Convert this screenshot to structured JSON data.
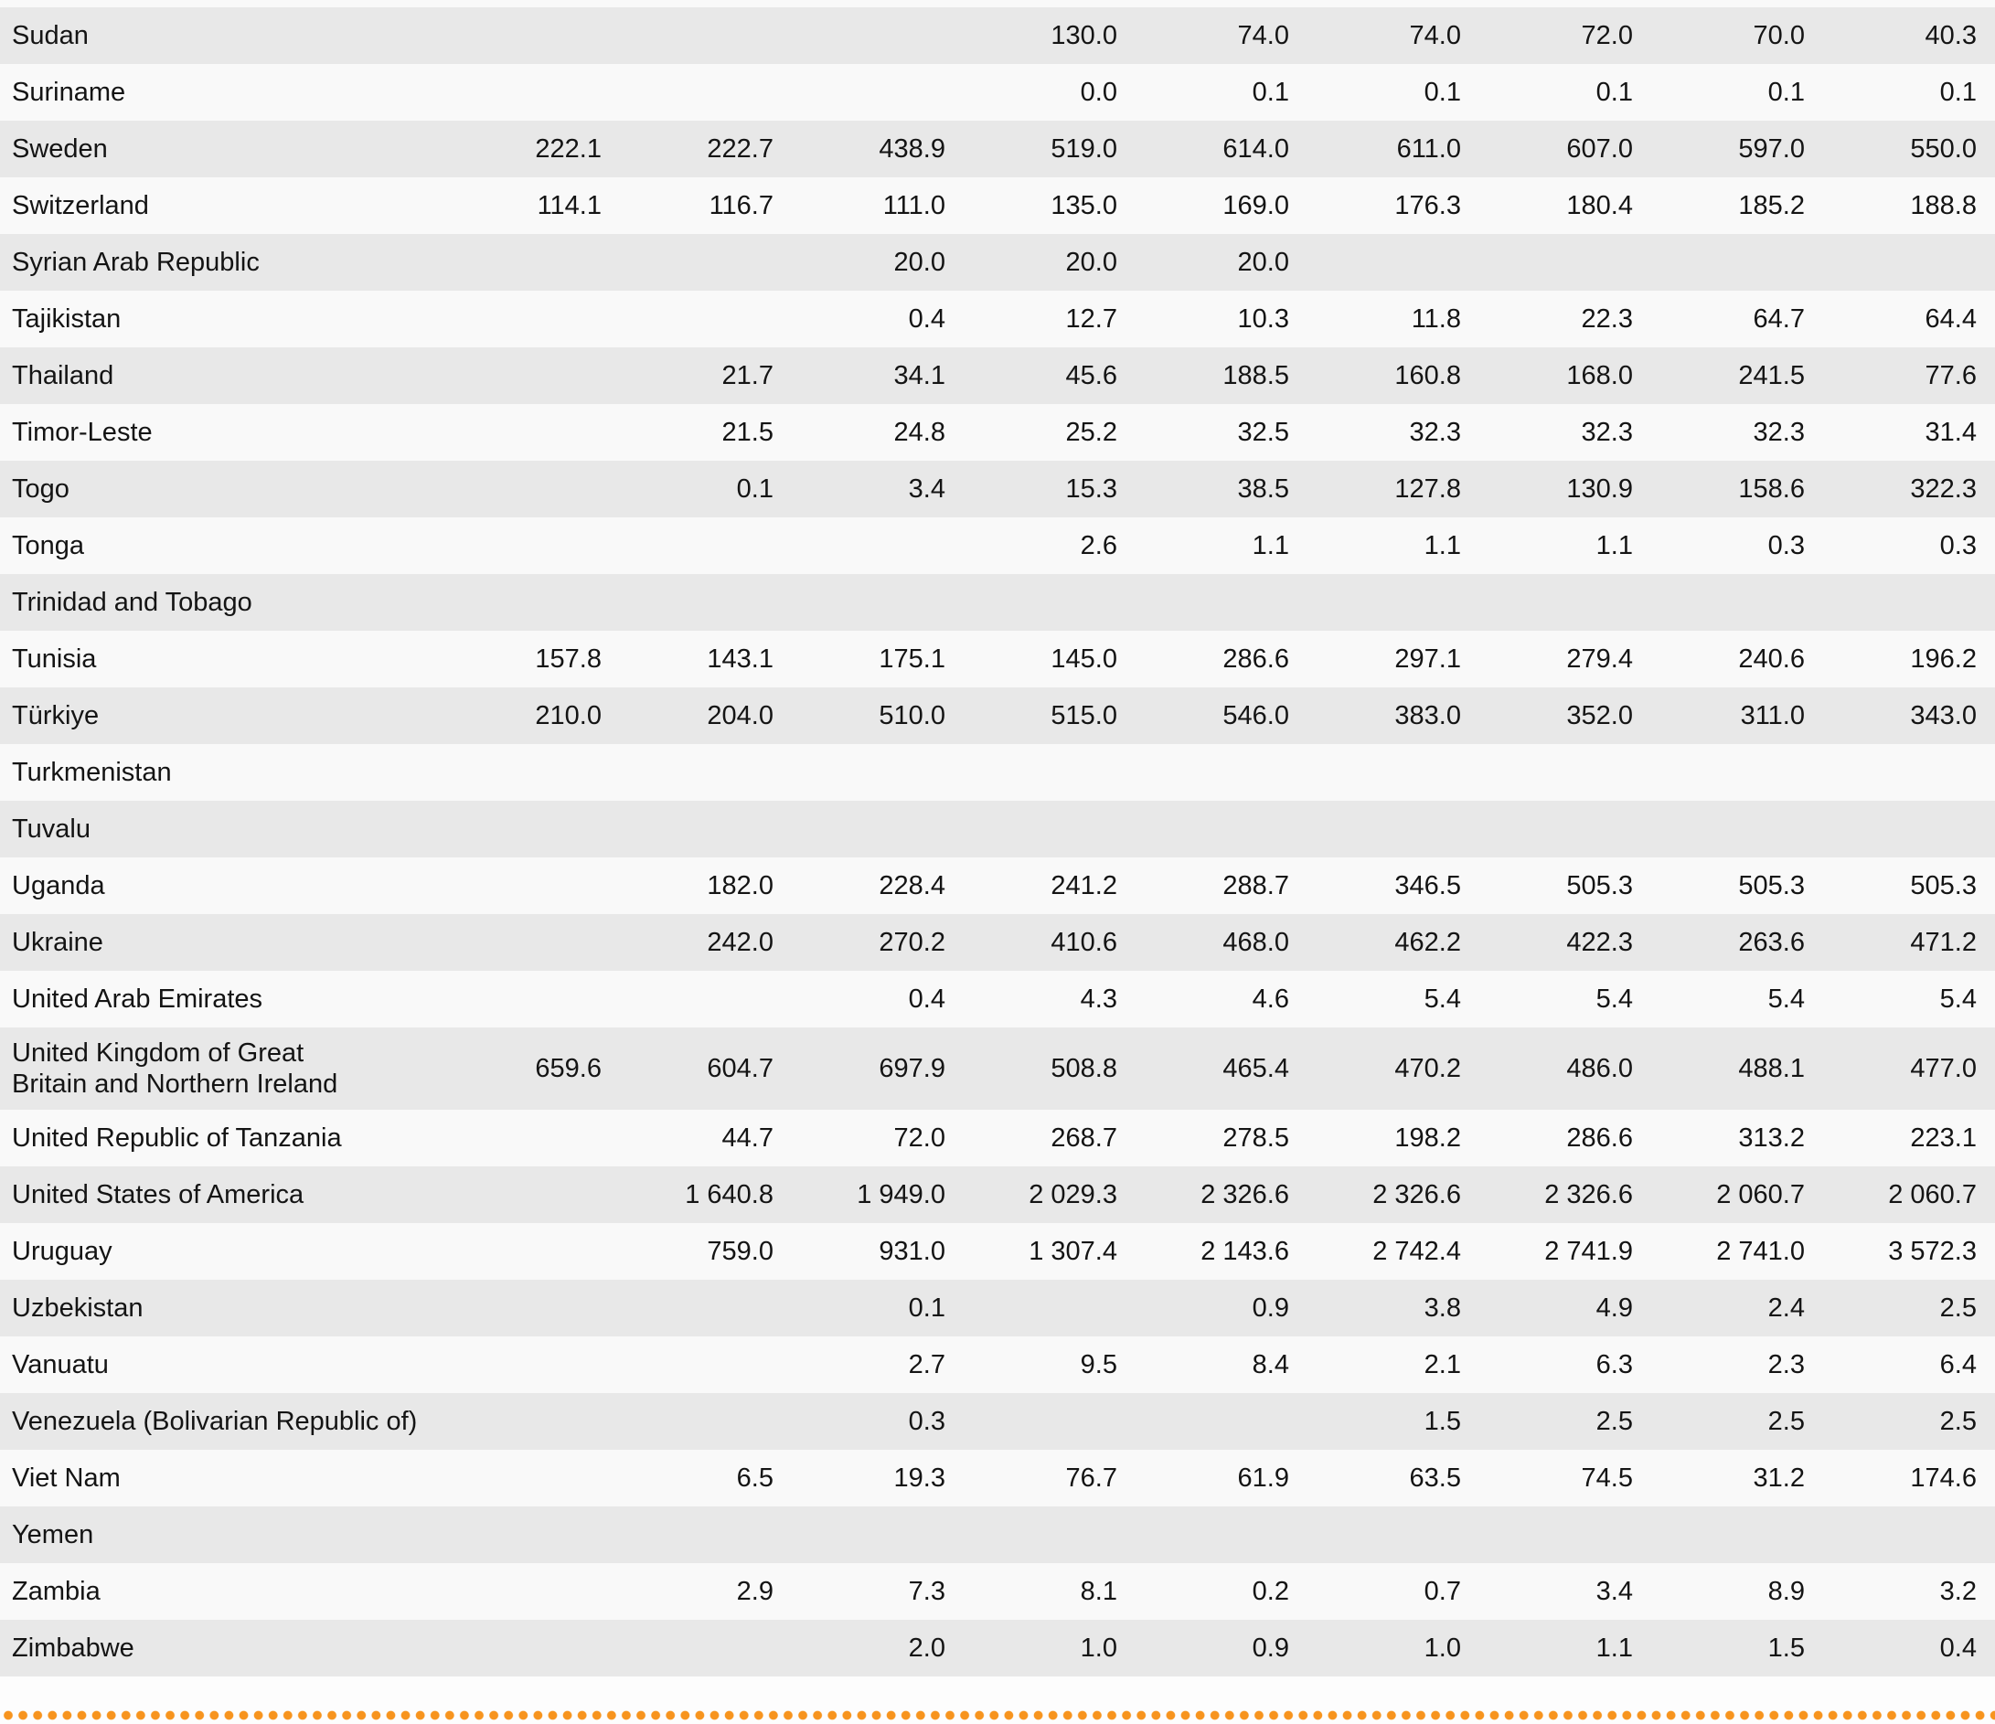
{
  "colors": {
    "row_shaded": "#e8e8e8",
    "row_plain": "#f9f9f9",
    "text": "#141414",
    "dot": "#F7941E"
  },
  "table": {
    "column_count": 9,
    "rows": [
      {
        "country": "Sudan",
        "values": [
          "",
          "",
          "",
          "130.0",
          "74.0",
          "74.0",
          "72.0",
          "70.0",
          "40.3"
        ]
      },
      {
        "country": "Suriname",
        "values": [
          "",
          "",
          "",
          "0.0",
          "0.1",
          "0.1",
          "0.1",
          "0.1",
          "0.1"
        ]
      },
      {
        "country": "Sweden",
        "values": [
          "222.1",
          "222.7",
          "438.9",
          "519.0",
          "614.0",
          "611.0",
          "607.0",
          "597.0",
          "550.0"
        ]
      },
      {
        "country": "Switzerland",
        "values": [
          "114.1",
          "116.7",
          "111.0",
          "135.0",
          "169.0",
          "176.3",
          "180.4",
          "185.2",
          "188.8"
        ]
      },
      {
        "country": "Syrian Arab Republic",
        "values": [
          "",
          "",
          "20.0",
          "20.0",
          "20.0",
          "",
          "",
          "",
          ""
        ]
      },
      {
        "country": "Tajikistan",
        "values": [
          "",
          "",
          "0.4",
          "12.7",
          "10.3",
          "11.8",
          "22.3",
          "64.7",
          "64.4"
        ]
      },
      {
        "country": "Thailand",
        "values": [
          "",
          "21.7",
          "34.1",
          "45.6",
          "188.5",
          "160.8",
          "168.0",
          "241.5",
          "77.6"
        ]
      },
      {
        "country": "Timor-Leste",
        "values": [
          "",
          "21.5",
          "24.8",
          "25.2",
          "32.5",
          "32.3",
          "32.3",
          "32.3",
          "31.4"
        ]
      },
      {
        "country": "Togo",
        "values": [
          "",
          "0.1",
          "3.4",
          "15.3",
          "38.5",
          "127.8",
          "130.9",
          "158.6",
          "322.3"
        ]
      },
      {
        "country": "Tonga",
        "values": [
          "",
          "",
          "",
          "2.6",
          "1.1",
          "1.1",
          "1.1",
          "0.3",
          "0.3"
        ]
      },
      {
        "country": "Trinidad and Tobago",
        "values": [
          "",
          "",
          "",
          "",
          "",
          "",
          "",
          "",
          ""
        ]
      },
      {
        "country": "Tunisia",
        "values": [
          "157.8",
          "143.1",
          "175.1",
          "145.0",
          "286.6",
          "297.1",
          "279.4",
          "240.6",
          "196.2"
        ]
      },
      {
        "country": "Türkiye",
        "values": [
          "210.0",
          "204.0",
          "510.0",
          "515.0",
          "546.0",
          "383.0",
          "352.0",
          "311.0",
          "343.0"
        ]
      },
      {
        "country": "Turkmenistan",
        "values": [
          "",
          "",
          "",
          "",
          "",
          "",
          "",
          "",
          ""
        ]
      },
      {
        "country": "Tuvalu",
        "values": [
          "",
          "",
          "",
          "",
          "",
          "",
          "",
          "",
          ""
        ]
      },
      {
        "country": "Uganda",
        "values": [
          "",
          "182.0",
          "228.4",
          "241.2",
          "288.7",
          "346.5",
          "505.3",
          "505.3",
          "505.3"
        ]
      },
      {
        "country": "Ukraine",
        "values": [
          "",
          "242.0",
          "270.2",
          "410.6",
          "468.0",
          "462.2",
          "422.3",
          "263.6",
          "471.2"
        ]
      },
      {
        "country": "United Arab Emirates",
        "values": [
          "",
          "",
          "0.4",
          "4.3",
          "4.6",
          "5.4",
          "5.4",
          "5.4",
          "5.4"
        ]
      },
      {
        "country": "United Kingdom of Great\nBritain and Northern Ireland",
        "values": [
          "659.6",
          "604.7",
          "697.9",
          "508.8",
          "465.4",
          "470.2",
          "486.0",
          "488.1",
          "477.0"
        ]
      },
      {
        "country": "United Republic of Tanzania",
        "values": [
          "",
          "44.7",
          "72.0",
          "268.7",
          "278.5",
          "198.2",
          "286.6",
          "313.2",
          "223.1"
        ]
      },
      {
        "country": "United States of America",
        "values": [
          "",
          "1 640.8",
          "1 949.0",
          "2 029.3",
          "2 326.6",
          "2 326.6",
          "2 326.6",
          "2 060.7",
          "2 060.7"
        ]
      },
      {
        "country": "Uruguay",
        "values": [
          "",
          "759.0",
          "931.0",
          "1 307.4",
          "2 143.6",
          "2 742.4",
          "2 741.9",
          "2 741.0",
          "3 572.3"
        ]
      },
      {
        "country": "Uzbekistan",
        "values": [
          "",
          "",
          "0.1",
          "",
          "0.9",
          "3.8",
          "4.9",
          "2.4",
          "2.5"
        ]
      },
      {
        "country": "Vanuatu",
        "values": [
          "",
          "",
          "2.7",
          "9.5",
          "8.4",
          "2.1",
          "6.3",
          "2.3",
          "6.4"
        ]
      },
      {
        "country": "Venezuela (Bolivarian Republic of)",
        "values": [
          "",
          "",
          "0.3",
          "",
          "",
          "1.5",
          "2.5",
          "2.5",
          "2.5"
        ]
      },
      {
        "country": "Viet Nam",
        "values": [
          "",
          "6.5",
          "19.3",
          "76.7",
          "61.9",
          "63.5",
          "74.5",
          "31.2",
          "174.6"
        ]
      },
      {
        "country": "Yemen",
        "values": [
          "",
          "",
          "",
          "",
          "",
          "",
          "",
          "",
          ""
        ]
      },
      {
        "country": "Zambia",
        "values": [
          "",
          "2.9",
          "7.3",
          "8.1",
          "0.2",
          "0.7",
          "3.4",
          "8.9",
          "3.2"
        ]
      },
      {
        "country": "Zimbabwe",
        "values": [
          "",
          "",
          "2.0",
          "1.0",
          "0.9",
          "1.0",
          "1.1",
          "1.5",
          "0.4"
        ]
      }
    ]
  }
}
